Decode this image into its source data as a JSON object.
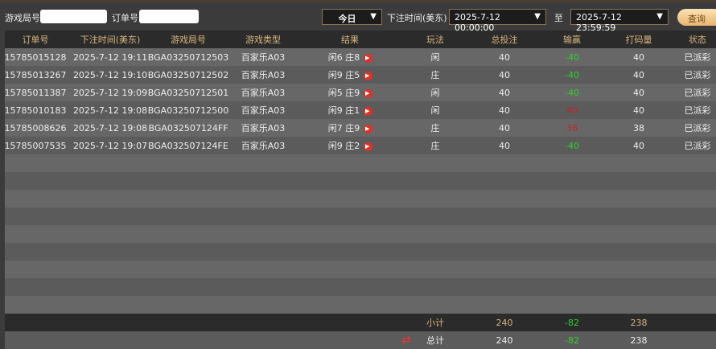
{
  "filters": {
    "game_round_label": "游戏局号",
    "game_round_value": "",
    "order_label": "订单号",
    "order_value": "",
    "period": "今日",
    "time_label": "下注时间(美东)",
    "start": "2025-7-12 00:00:00",
    "to_label": "至",
    "end": "2025-7-12 23:59:59",
    "query": "查询"
  },
  "columns": [
    "订单号",
    "下注时间(美东)",
    "游戏局号",
    "游戏类型",
    "结果",
    "玩法",
    "总投注",
    "输赢",
    "打码量",
    "状态"
  ],
  "rows": [
    [
      "15785015128",
      "2025-7-12 19:11",
      "BGA03250712503",
      "百家乐A03",
      "闲6 庄8",
      "闲",
      "40",
      "-40",
      "40",
      "已派彩"
    ],
    [
      "15785013267",
      "2025-7-12 19:10",
      "BGA03250712502",
      "百家乐A03",
      "闲9 庄5",
      "庄",
      "40",
      "-40",
      "40",
      "已派彩"
    ],
    [
      "15785011387",
      "2025-7-12 19:09",
      "BGA03250712501",
      "百家乐A03",
      "闲5 庄9",
      "闲",
      "40",
      "-40",
      "40",
      "已派彩"
    ],
    [
      "15785010183",
      "2025-7-12 19:08",
      "BGA03250712500",
      "百家乐A03",
      "闲9 庄1",
      "闲",
      "40",
      "40",
      "40",
      "已派彩"
    ],
    [
      "15785008626",
      "2025-7-12 19:08",
      "BGA032507124FF",
      "百家乐A03",
      "闲7 庄9",
      "庄",
      "40",
      "38",
      "38",
      "已派彩"
    ],
    [
      "15785007535",
      "2025-7-12 19:07",
      "BGA032507124FE",
      "百家乐A03",
      "闲9 庄2",
      "庄",
      "40",
      "-40",
      "40",
      "已派彩"
    ]
  ],
  "subtotal": {
    "label": "小计",
    "bet": "240",
    "win": "-82",
    "turnover": "238"
  },
  "total": {
    "label": "总计",
    "bet": "240",
    "win": "-82",
    "turnover": "238"
  },
  "colors": {
    "loss": "#2ed12e",
    "win": "#c42424",
    "header_text": "#d8b57c"
  }
}
